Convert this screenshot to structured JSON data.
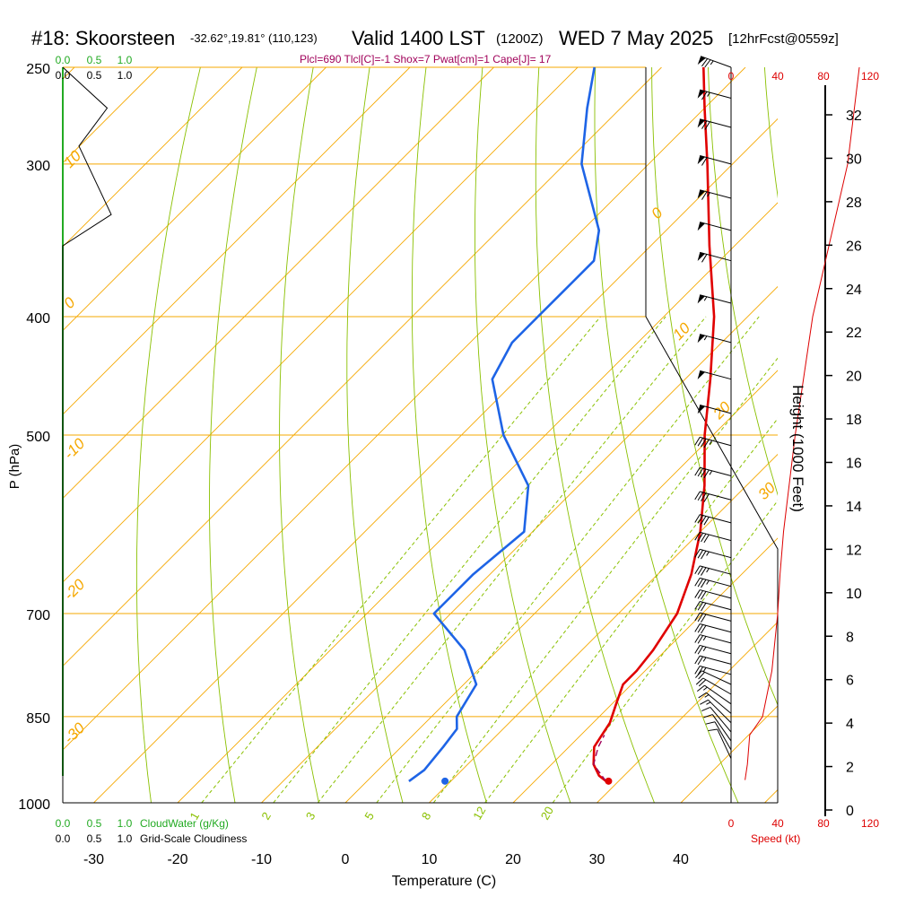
{
  "header": {
    "station": "#18: Skoorsteen",
    "coords": "-32.62°,19.81° (110,123)",
    "valid": "Valid 1400 LST",
    "utc": "(1200Z)",
    "date": "WED 7 May 2025",
    "fcst": "[12hrFcst@0559z]",
    "params": "Plcl=690 Tlcl[C]=-1 Shox=7 Pwat[cm]=1 Cape[J]= 17"
  },
  "colors": {
    "isotherm": "#f5a800",
    "dry_adiabat": "#8ac000",
    "mixing": "#8ac000",
    "temperature": "#e00000",
    "dewpoint": "#1e64e6",
    "cloud": "#22aa22",
    "wind_speed": "#dd0000",
    "text": "#000000",
    "params_text": "#a0005a"
  },
  "chart_data": {
    "type": "line",
    "title": "#18: Skoorsteen",
    "xlabel": "Temperature (C)",
    "ylabel": "P (hPa)",
    "pressure_ticks": [
      250,
      300,
      400,
      500,
      700,
      850,
      1000
    ],
    "temperature_ticks": [
      -30,
      -20,
      -10,
      0,
      10,
      20,
      30,
      40
    ],
    "height_axis": {
      "label": "Height (1000 Feet)",
      "ticks": [
        0,
        2,
        4,
        6,
        8,
        10,
        12,
        14,
        16,
        18,
        20,
        22,
        24,
        26,
        28,
        30,
        32
      ]
    },
    "isotherm_labels": [
      "10",
      "0",
      "-10",
      "-20",
      "-30",
      "0",
      "10",
      "20",
      "30"
    ],
    "mixing_ratio_labels": [
      "1",
      "2",
      "3",
      "5",
      "8",
      "12",
      "20"
    ],
    "cloud_axis": {
      "label": "CloudWater (g/Kg)",
      "ticks": [
        "0.0",
        "0.5",
        "1.0"
      ],
      "profile": [
        [
          250,
          0.0
        ],
        [
          270,
          0.55
        ],
        [
          290,
          0.2
        ],
        [
          330,
          0.6
        ],
        [
          350,
          0.0
        ],
        [
          980,
          0.0
        ]
      ]
    },
    "cloudiness_axis": {
      "label": "Grid-Scale Cloudiness",
      "ticks": [
        "0.0",
        "0.5",
        "1.0"
      ]
    },
    "wind_axis": {
      "label": "Speed (kt)",
      "ticks": [
        "0",
        "40",
        "80",
        "120"
      ],
      "profile": [
        [
          958,
          12
        ],
        [
          930,
          14
        ],
        [
          880,
          16
        ],
        [
          850,
          27
        ],
        [
          780,
          35
        ],
        [
          700,
          40
        ],
        [
          650,
          42
        ],
        [
          600,
          45
        ],
        [
          500,
          55
        ],
        [
          400,
          70
        ],
        [
          300,
          100
        ],
        [
          250,
          110
        ]
      ]
    },
    "series": [
      {
        "name": "Temperature",
        "points": [
          [
            960,
            28.5
          ],
          [
            950,
            27
          ],
          [
            930,
            25
          ],
          [
            900,
            23
          ],
          [
            880,
            22.5
          ],
          [
            860,
            22
          ],
          [
            830,
            20.5
          ],
          [
            800,
            19
          ],
          [
            780,
            19
          ],
          [
            750,
            18.5
          ],
          [
            700,
            17
          ],
          [
            650,
            14
          ],
          [
            600,
            10
          ],
          [
            550,
            5
          ],
          [
            500,
            -1
          ],
          [
            450,
            -7
          ],
          [
            400,
            -14
          ],
          [
            350,
            -23
          ],
          [
            300,
            -33
          ],
          [
            270,
            -40
          ],
          [
            250,
            -45
          ]
        ]
      },
      {
        "name": "Dewpoint",
        "points": [
          [
            960,
            5
          ],
          [
            940,
            5.5
          ],
          [
            900,
            5
          ],
          [
            870,
            4.5
          ],
          [
            850,
            3
          ],
          [
            800,
            1.5
          ],
          [
            750,
            -4
          ],
          [
            700,
            -12
          ],
          [
            650,
            -12
          ],
          [
            600,
            -11
          ],
          [
            550,
            -16
          ],
          [
            500,
            -25
          ],
          [
            450,
            -33
          ],
          [
            420,
            -35
          ],
          [
            400,
            -35
          ],
          [
            380,
            -35
          ],
          [
            360,
            -35
          ],
          [
            340,
            -38
          ],
          [
            300,
            -48
          ],
          [
            270,
            -54
          ],
          [
            250,
            -58
          ]
        ]
      }
    ],
    "surface_parcel": {
      "temperature": [
        960,
        28.8
      ],
      "dewpoint": [
        960,
        9.3
      ]
    },
    "parcel_path": [
      [
        960,
        28.5
      ],
      [
        930,
        25
      ],
      [
        900,
        23.5
      ],
      [
        880,
        22.8
      ]
    ],
    "wind_barbs": [
      {
        "p": 250,
        "speed": 75,
        "dir": 290
      },
      {
        "p": 265,
        "speed": 65,
        "dir": 285
      },
      {
        "p": 280,
        "speed": 70,
        "dir": 285
      },
      {
        "p": 300,
        "speed": 60,
        "dir": 285
      },
      {
        "p": 320,
        "speed": 65,
        "dir": 285
      },
      {
        "p": 340,
        "speed": 50,
        "dir": 285
      },
      {
        "p": 360,
        "speed": 60,
        "dir": 285
      },
      {
        "p": 390,
        "speed": 55,
        "dir": 285
      },
      {
        "p": 420,
        "speed": 55,
        "dir": 285
      },
      {
        "p": 450,
        "speed": 50,
        "dir": 285
      },
      {
        "p": 480,
        "speed": 50,
        "dir": 285
      },
      {
        "p": 510,
        "speed": 45,
        "dir": 285
      },
      {
        "p": 540,
        "speed": 45,
        "dir": 285
      },
      {
        "p": 565,
        "speed": 40,
        "dir": 285
      },
      {
        "p": 590,
        "speed": 40,
        "dir": 285
      },
      {
        "p": 610,
        "speed": 40,
        "dir": 285
      },
      {
        "p": 630,
        "speed": 35,
        "dir": 285
      },
      {
        "p": 650,
        "speed": 35,
        "dir": 285
      },
      {
        "p": 665,
        "speed": 35,
        "dir": 285
      },
      {
        "p": 680,
        "speed": 30,
        "dir": 285
      },
      {
        "p": 695,
        "speed": 30,
        "dir": 285
      },
      {
        "p": 710,
        "speed": 30,
        "dir": 285
      },
      {
        "p": 725,
        "speed": 30,
        "dir": 285
      },
      {
        "p": 740,
        "speed": 25,
        "dir": 285
      },
      {
        "p": 755,
        "speed": 25,
        "dir": 285
      },
      {
        "p": 770,
        "speed": 25,
        "dir": 285
      },
      {
        "p": 785,
        "speed": 25,
        "dir": 285
      },
      {
        "p": 800,
        "speed": 20,
        "dir": 295
      },
      {
        "p": 815,
        "speed": 20,
        "dir": 300
      },
      {
        "p": 830,
        "speed": 15,
        "dir": 305
      },
      {
        "p": 845,
        "speed": 15,
        "dir": 310
      },
      {
        "p": 860,
        "speed": 15,
        "dir": 315
      },
      {
        "p": 875,
        "speed": 10,
        "dir": 320
      },
      {
        "p": 890,
        "speed": 10,
        "dir": 325
      },
      {
        "p": 905,
        "speed": 10,
        "dir": 330
      },
      {
        "p": 920,
        "speed": 10,
        "dir": 335
      }
    ]
  }
}
